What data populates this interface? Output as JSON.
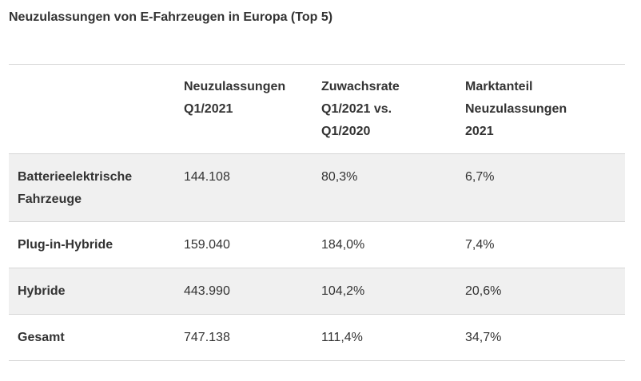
{
  "title": "Neuzulassungen von E-Fahrzeugen in Europa (Top 5)",
  "table": {
    "headers": [
      "",
      "Neuzulassungen Q1/2021",
      "Zuwachsrate Q1/2021 vs. Q1/2020",
      "Marktanteil Neuzulassungen 2021"
    ],
    "rows": [
      [
        "Batterieelektrische Fahrzeuge",
        "144.108",
        "80,3%",
        "6,7%"
      ],
      [
        "Plug-in-Hybride",
        "159.040",
        "184,0%",
        "7,4%"
      ],
      [
        "Hybride",
        "443.990",
        "104,2%",
        "20,6%"
      ],
      [
        "Gesamt",
        "747.138",
        "111,4%",
        "34,7%"
      ]
    ]
  },
  "colors": {
    "text": "#333333",
    "row_shade": "#f0f0f0",
    "border": "#d6d6d6"
  }
}
